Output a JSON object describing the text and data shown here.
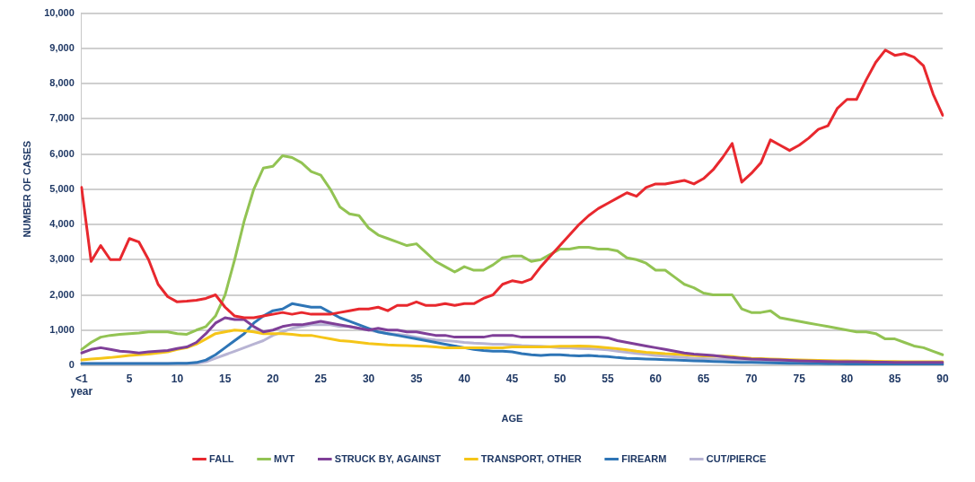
{
  "chart_data": {
    "type": "line",
    "xlabel": "AGE",
    "ylabel": "NUMBER OF CASES",
    "categories": [
      "<1 year",
      null,
      null,
      null,
      null,
      "5",
      null,
      null,
      null,
      null,
      "10",
      null,
      null,
      null,
      null,
      "15",
      null,
      null,
      null,
      null,
      "20",
      null,
      null,
      null,
      null,
      "25",
      null,
      null,
      null,
      null,
      "30",
      null,
      null,
      null,
      null,
      "35",
      null,
      null,
      null,
      null,
      "40",
      null,
      null,
      null,
      null,
      "45",
      null,
      null,
      null,
      null,
      "50",
      null,
      null,
      null,
      null,
      "55",
      null,
      null,
      null,
      null,
      "60",
      null,
      null,
      null,
      null,
      "65",
      null,
      null,
      null,
      null,
      "70",
      null,
      null,
      null,
      null,
      "75",
      null,
      null,
      null,
      null,
      "80",
      null,
      null,
      null,
      null,
      "85",
      null,
      null,
      null,
      null,
      "90"
    ],
    "series": [
      {
        "name": "FALL",
        "color": "#e8282e",
        "values": [
          5050,
          2950,
          3400,
          3000,
          3000,
          3600,
          3500,
          3000,
          2300,
          1950,
          1800,
          1820,
          1850,
          1900,
          2000,
          1650,
          1400,
          1350,
          1350,
          1400,
          1450,
          1500,
          1450,
          1500,
          1450,
          1450,
          1450,
          1500,
          1550,
          1600,
          1600,
          1650,
          1550,
          1700,
          1700,
          1800,
          1700,
          1700,
          1750,
          1700,
          1750,
          1750,
          1900,
          2000,
          2300,
          2400,
          2350,
          2450,
          2800,
          3100,
          3400,
          3700,
          4000,
          4250,
          4450,
          4600,
          4750,
          4900,
          4800,
          5050,
          5150,
          5150,
          5200,
          5250,
          5150,
          5300,
          5550,
          5900,
          6300,
          5200,
          5450,
          5750,
          6400,
          6250,
          6100,
          6250,
          6450,
          6700,
          6800,
          7300,
          7550,
          7550,
          8100,
          8600,
          8950,
          8800,
          8850,
          8750,
          8500,
          7700,
          7100
        ]
      },
      {
        "name": "MVT",
        "color": "#92c353",
        "values": [
          450,
          650,
          800,
          850,
          880,
          900,
          920,
          950,
          950,
          950,
          900,
          880,
          1000,
          1100,
          1400,
          2000,
          3000,
          4100,
          5000,
          5600,
          5650,
          5950,
          5900,
          5750,
          5500,
          5400,
          5000,
          4500,
          4300,
          4250,
          3900,
          3700,
          3600,
          3500,
          3400,
          3450,
          3200,
          2950,
          2800,
          2650,
          2800,
          2700,
          2700,
          2850,
          3050,
          3100,
          3100,
          2950,
          3000,
          3150,
          3300,
          3300,
          3350,
          3350,
          3300,
          3300,
          3250,
          3050,
          3000,
          2900,
          2700,
          2700,
          2500,
          2300,
          2200,
          2050,
          2000,
          2000,
          2000,
          1600,
          1500,
          1500,
          1550,
          1350,
          1300,
          1250,
          1200,
          1150,
          1100,
          1050,
          1000,
          950,
          950,
          900,
          750,
          750,
          650,
          550,
          500,
          400,
          300
        ]
      },
      {
        "name": "STRUCK BY, AGAINST",
        "color": "#7f3f98",
        "values": [
          350,
          450,
          500,
          450,
          400,
          380,
          350,
          380,
          400,
          420,
          480,
          520,
          650,
          900,
          1200,
          1350,
          1300,
          1300,
          1100,
          950,
          1000,
          1100,
          1150,
          1150,
          1200,
          1250,
          1200,
          1150,
          1100,
          1050,
          1000,
          1050,
          1000,
          1000,
          950,
          950,
          900,
          850,
          850,
          800,
          800,
          800,
          800,
          850,
          850,
          850,
          800,
          800,
          800,
          800,
          800,
          800,
          800,
          800,
          800,
          780,
          700,
          650,
          600,
          550,
          500,
          450,
          400,
          350,
          320,
          300,
          280,
          250,
          220,
          200,
          180,
          170,
          160,
          150,
          140,
          130,
          120,
          115,
          110,
          105,
          100,
          100,
          95,
          90,
          90,
          85,
          85,
          80,
          80,
          80,
          80
        ]
      },
      {
        "name": "TRANSPORT, OTHER",
        "color": "#f5c518",
        "values": [
          150,
          180,
          200,
          220,
          250,
          280,
          300,
          320,
          350,
          380,
          450,
          500,
          600,
          750,
          900,
          950,
          1000,
          980,
          950,
          900,
          900,
          900,
          880,
          850,
          850,
          800,
          750,
          700,
          680,
          650,
          620,
          600,
          580,
          570,
          560,
          550,
          540,
          520,
          500,
          500,
          500,
          500,
          500,
          500,
          500,
          520,
          520,
          520,
          520,
          530,
          540,
          540,
          550,
          540,
          520,
          500,
          470,
          440,
          400,
          370,
          350,
          330,
          320,
          300,
          280,
          270,
          260,
          260,
          250,
          220,
          200,
          190,
          180,
          170,
          160,
          150,
          145,
          140,
          135,
          130,
          125,
          120,
          120,
          115,
          110,
          110,
          105,
          105,
          100,
          100,
          100
        ]
      },
      {
        "name": "FIREARM",
        "color": "#2e75b6",
        "values": [
          50,
          50,
          50,
          50,
          50,
          50,
          50,
          50,
          50,
          50,
          55,
          60,
          80,
          150,
          300,
          500,
          700,
          900,
          1200,
          1400,
          1550,
          1600,
          1750,
          1700,
          1650,
          1650,
          1500,
          1350,
          1250,
          1150,
          1050,
          950,
          900,
          850,
          800,
          750,
          700,
          650,
          600,
          550,
          500,
          450,
          420,
          400,
          400,
          380,
          330,
          300,
          280,
          300,
          300,
          280,
          270,
          280,
          260,
          250,
          220,
          200,
          190,
          180,
          170,
          160,
          150,
          140,
          130,
          120,
          110,
          100,
          90,
          85,
          80,
          75,
          70,
          65,
          60,
          55,
          50,
          50,
          45,
          45,
          40,
          40,
          40,
          35,
          35,
          35,
          30,
          30,
          30,
          30,
          30
        ]
      },
      {
        "name": "CUT/PIERCE",
        "color": "#b8b4d4",
        "values": [
          50,
          50,
          50,
          50,
          50,
          50,
          50,
          50,
          50,
          50,
          50,
          50,
          60,
          100,
          200,
          300,
          400,
          500,
          600,
          700,
          850,
          950,
          1050,
          1100,
          1150,
          1150,
          1150,
          1100,
          1100,
          1050,
          1000,
          950,
          900,
          880,
          850,
          800,
          750,
          720,
          700,
          680,
          650,
          630,
          620,
          600,
          600,
          580,
          560,
          550,
          540,
          520,
          500,
          500,
          480,
          470,
          460,
          440,
          400,
          370,
          340,
          310,
          280,
          260,
          240,
          220,
          200,
          190,
          180,
          170,
          160,
          150,
          140,
          130,
          120,
          110,
          100,
          95,
          90,
          85,
          80,
          75,
          70,
          65,
          60,
          55,
          50,
          50,
          45,
          45,
          40,
          40,
          40
        ]
      }
    ],
    "ylim": [
      0,
      10000
    ],
    "yticks": [
      0,
      {
        "value": 1000,
        "label": "1,000"
      },
      {
        "value": 2000,
        "label": "2,000"
      },
      {
        "value": 3000,
        "label": "3,000"
      },
      {
        "value": 4000,
        "label": "4,000"
      },
      {
        "value": 5000,
        "label": "5,000"
      },
      {
        "value": 6000,
        "label": "6,000"
      },
      {
        "value": 7000,
        "label": "7,000"
      },
      {
        "value": 8000,
        "label": "8,000"
      },
      {
        "value": 9000,
        "label": "9,000"
      },
      {
        "value": 10000,
        "label": "10,000"
      }
    ],
    "grid": "y",
    "legend": "bottom",
    "marker": "none",
    "line_style": "solid"
  }
}
